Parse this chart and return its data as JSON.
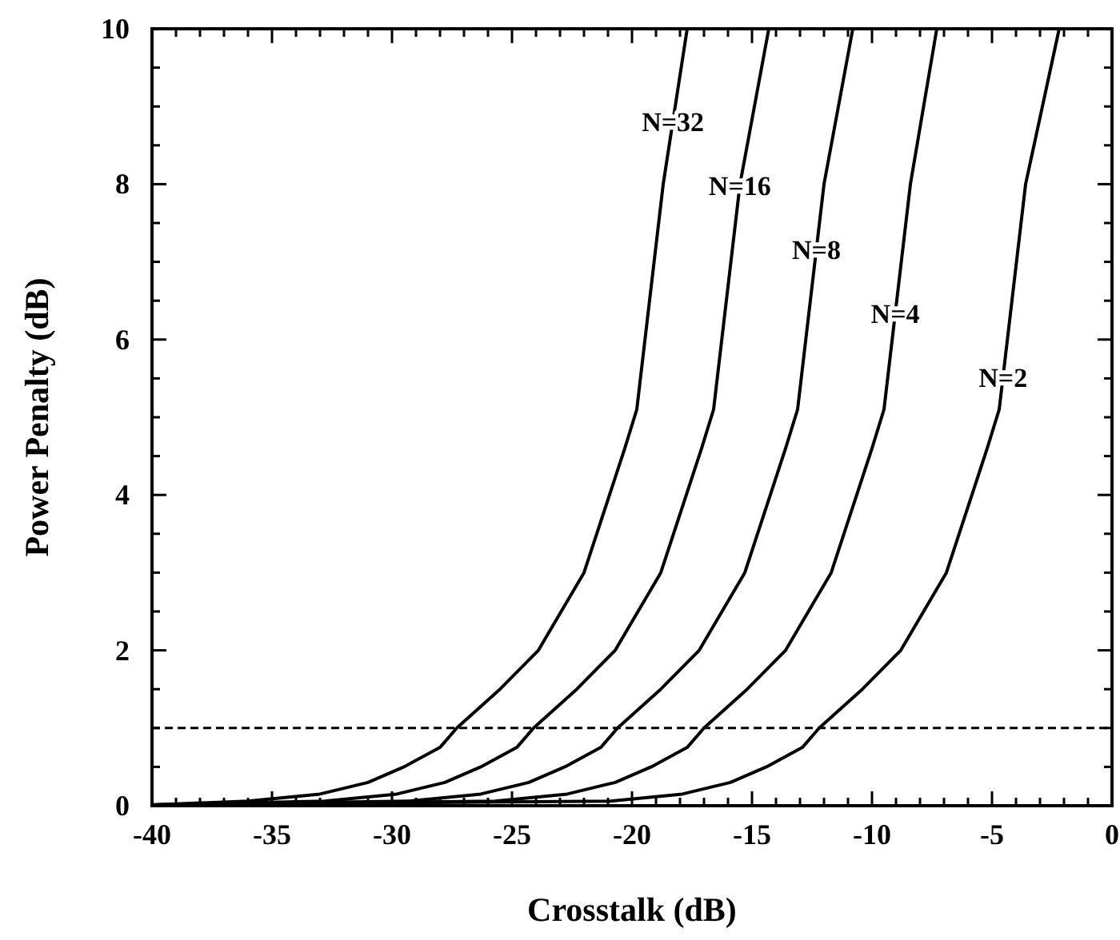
{
  "chart_data": {
    "type": "line",
    "xlabel": "Crosstalk (dB)",
    "ylabel": "Power Penalty (dB)",
    "xlim": [
      -40,
      0
    ],
    "ylim": [
      0,
      10
    ],
    "xticks": [
      -40,
      {
        "value": -39,
        "label": null
      },
      {
        "value": -38,
        "label": null
      },
      {
        "value": -37,
        "label": null
      },
      {
        "value": -36,
        "label": null
      },
      -35,
      {
        "value": -34,
        "label": null
      },
      {
        "value": -33,
        "label": null
      },
      {
        "value": -32,
        "label": null
      },
      {
        "value": -31,
        "label": null
      },
      -30,
      {
        "value": -29,
        "label": null
      },
      {
        "value": -28,
        "label": null
      },
      {
        "value": -27,
        "label": null
      },
      {
        "value": -26,
        "label": null
      },
      -25,
      {
        "value": -24,
        "label": null
      },
      {
        "value": -23,
        "label": null
      },
      {
        "value": -22,
        "label": null
      },
      {
        "value": -21,
        "label": null
      },
      -20,
      {
        "value": -19,
        "label": null
      },
      {
        "value": -18,
        "label": null
      },
      {
        "value": -17,
        "label": null
      },
      {
        "value": -16,
        "label": null
      },
      -15,
      {
        "value": -14,
        "label": null
      },
      {
        "value": -13,
        "label": null
      },
      {
        "value": -12,
        "label": null
      },
      {
        "value": -11,
        "label": null
      },
      -10,
      {
        "value": -9,
        "label": null
      },
      {
        "value": -8,
        "label": null
      },
      {
        "value": -7,
        "label": null
      },
      {
        "value": -6,
        "label": null
      },
      -5,
      {
        "value": -4,
        "label": null
      },
      {
        "value": -3,
        "label": null
      },
      {
        "value": -2,
        "label": null
      },
      {
        "value": -1,
        "label": null
      },
      0
    ],
    "yticks": [
      0,
      {
        "value": 0.5,
        "label": null
      },
      {
        "value": 1,
        "label": null
      },
      {
        "value": 1.5,
        "label": null
      },
      2,
      {
        "value": 2.5,
        "label": null
      },
      {
        "value": 3,
        "label": null
      },
      {
        "value": 3.5,
        "label": null
      },
      4,
      {
        "value": 4.5,
        "label": null
      },
      {
        "value": 5,
        "label": null
      },
      {
        "value": 5.5,
        "label": null
      },
      6,
      {
        "value": 6.5,
        "label": null
      },
      {
        "value": 7,
        "label": null
      },
      {
        "value": 7.5,
        "label": null
      },
      8,
      {
        "value": 8.5,
        "label": null
      },
      {
        "value": 9,
        "label": null
      },
      {
        "value": 9.5,
        "label": null
      },
      10
    ],
    "grid": false,
    "marker": "none",
    "line_style": "solid",
    "series": [
      {
        "name": "N=32",
        "color": "#000000",
        "x": [
          -40,
          -36,
          -33,
          -31,
          -29.5,
          -28,
          -27.3,
          -25.5,
          -23.9,
          -22,
          -20.3,
          -19.8,
          -18.7,
          -17.7
        ],
        "values": [
          0.01,
          0.06,
          0.15,
          0.3,
          0.5,
          0.75,
          1,
          1.5,
          2,
          3,
          4.6,
          5.1,
          8,
          10
        ]
      },
      {
        "name": "N=16",
        "color": "#000000",
        "x": [
          -40,
          -32.8,
          -29.8,
          -27.8,
          -26.3,
          -24.8,
          -24.1,
          -22.3,
          -20.7,
          -18.8,
          -17.1,
          -16.6,
          -15.5,
          -14.3
        ],
        "values": [
          0.01,
          0.06,
          0.15,
          0.3,
          0.5,
          0.75,
          1,
          1.5,
          2,
          3,
          4.6,
          5.1,
          8,
          10
        ]
      },
      {
        "name": "N=8",
        "color": "#000000",
        "x": [
          -40,
          -29.3,
          -26.3,
          -24.3,
          -22.8,
          -21.3,
          -20.6,
          -18.8,
          -17.2,
          -15.3,
          -13.6,
          -13.1,
          -12,
          -10.8
        ],
        "values": [
          0.01,
          0.06,
          0.15,
          0.3,
          0.5,
          0.75,
          1,
          1.5,
          2,
          3,
          4.6,
          5.1,
          8,
          10
        ]
      },
      {
        "name": "N=4",
        "color": "#000000",
        "x": [
          -40,
          -25.7,
          -22.7,
          -20.7,
          -19.2,
          -17.7,
          -17,
          -15.2,
          -13.6,
          -11.7,
          -10,
          -9.5,
          -8.4,
          -7.3
        ],
        "values": [
          0.01,
          0.06,
          0.15,
          0.3,
          0.5,
          0.75,
          1,
          1.5,
          2,
          3,
          4.6,
          5.1,
          8,
          10
        ]
      },
      {
        "name": "N=2",
        "color": "#000000",
        "x": [
          -40,
          -20.9,
          -17.9,
          -15.9,
          -14.4,
          -12.9,
          -12.2,
          -10.4,
          -8.8,
          -6.9,
          -5.2,
          -4.7,
          -3.6,
          -2.2
        ],
        "values": [
          0.01,
          0.06,
          0.15,
          0.3,
          0.5,
          0.75,
          1,
          1.5,
          2,
          3,
          4.6,
          5.1,
          8,
          10
        ]
      }
    ],
    "ref_lines": [
      {
        "axis": "y",
        "value": 1,
        "color": "#000000",
        "line_style": "dashed"
      }
    ]
  }
}
